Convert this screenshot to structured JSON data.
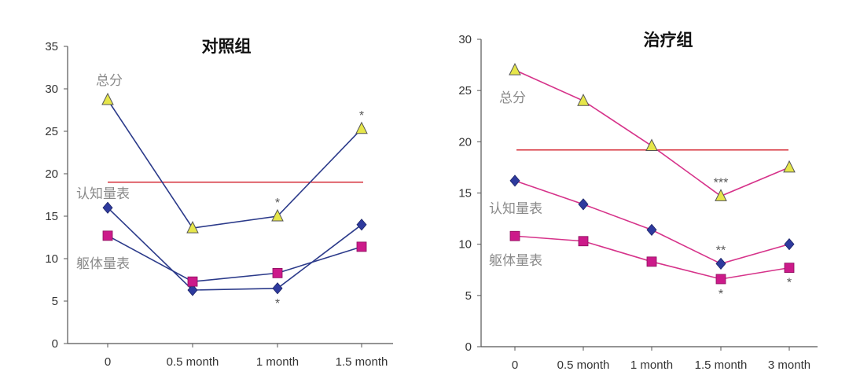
{
  "chart_data": [
    {
      "type": "line",
      "title": "对照组",
      "categories": [
        "0",
        "0.5 month",
        "1 month",
        "1.5 month"
      ],
      "ylim": [
        0,
        35
      ],
      "yticks": [
        0,
        5,
        10,
        15,
        20,
        25,
        30,
        35
      ],
      "reference_line": 19,
      "series": [
        {
          "name": "总分",
          "color": "#2b3a8a",
          "marker": "triangle",
          "marker_color": "#e6e64a",
          "values": [
            28.7,
            13.6,
            15.0,
            25.3
          ],
          "stars": [
            "",
            "",
            "*",
            "*"
          ],
          "star_pos": "above"
        },
        {
          "name": "认知量表",
          "color": "#2b3a8a",
          "marker": "diamond",
          "marker_color": "#2e3a9e",
          "values": [
            16.0,
            6.3,
            6.5,
            14.0
          ],
          "stars": [
            "",
            "",
            "*",
            ""
          ],
          "star_pos": "below"
        },
        {
          "name": "躯体量表",
          "color": "#2b3a8a",
          "marker": "square",
          "marker_color": "#cc1a8a",
          "values": [
            12.7,
            7.3,
            8.3,
            11.4
          ],
          "stars": [
            "",
            "",
            "",
            ""
          ],
          "star_pos": "below"
        }
      ],
      "labels": [
        "总分",
        "认知量表",
        "躯体量表"
      ]
    },
    {
      "type": "line",
      "title": "治疗组",
      "categories": [
        "0",
        "0.5 month",
        "1 month",
        "1.5 month",
        "3 month"
      ],
      "ylim": [
        0,
        30
      ],
      "yticks": [
        0,
        5,
        10,
        15,
        20,
        25,
        30
      ],
      "reference_line": 19.2,
      "series": [
        {
          "name": "总分",
          "color": "#d6338a",
          "marker": "triangle",
          "marker_color": "#e6e64a",
          "values": [
            27.0,
            24.0,
            19.6,
            14.7,
            17.5
          ],
          "stars": [
            "",
            "",
            "",
            "***",
            ""
          ],
          "star_pos": "above"
        },
        {
          "name": "认知量表",
          "color": "#d6338a",
          "marker": "diamond",
          "marker_color": "#2e3a9e",
          "values": [
            16.2,
            13.9,
            11.4,
            8.1,
            10.0
          ],
          "stars": [
            "",
            "",
            "",
            "**",
            ""
          ],
          "star_pos": "above"
        },
        {
          "name": "躯体量表",
          "color": "#d6338a",
          "marker": "square",
          "marker_color": "#cc1a8a",
          "values": [
            10.8,
            10.3,
            8.3,
            6.6,
            7.7
          ],
          "stars": [
            "",
            "",
            "",
            "*",
            "*"
          ],
          "star_pos": "below"
        }
      ],
      "labels": [
        "总分",
        "认知量表",
        "躯体量表"
      ]
    }
  ]
}
